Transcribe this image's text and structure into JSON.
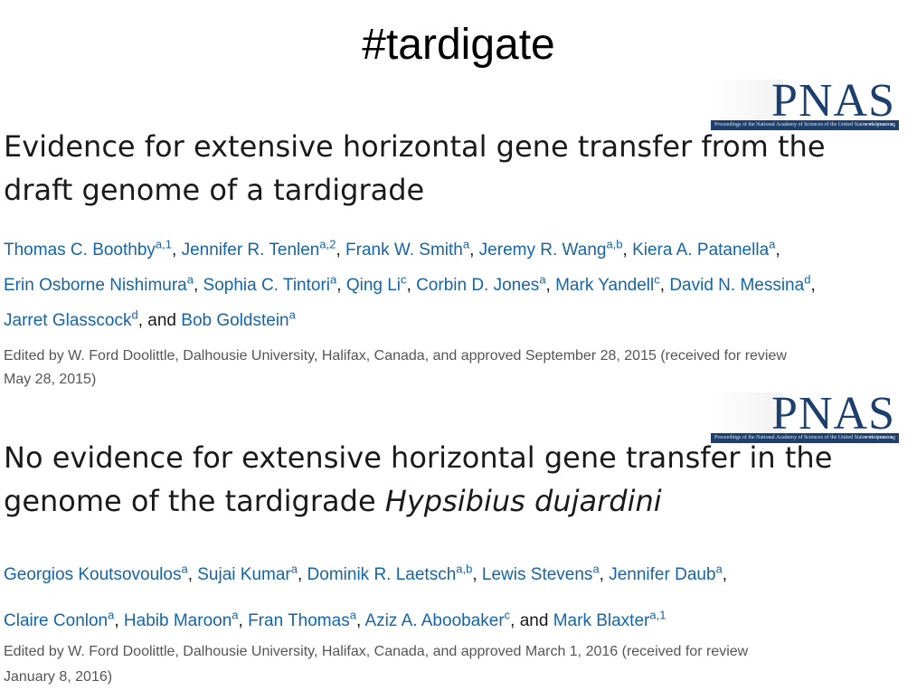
{
  "slide": {
    "title": "#tardigate"
  },
  "pnas_logo": {
    "letters": "PNAS",
    "caption": "Proceedings of the National Academy of Sciences of the United States of America",
    "url": "www.pnas.org"
  },
  "papers": [
    {
      "title_lines": [
        {
          "text": "Evidence for extensive horizontal gene transfer from the"
        },
        {
          "text": "draft genome of a tardigrade"
        }
      ],
      "author_lines": [
        [
          {
            "name": "Thomas C. Boothby",
            "aff": "a,1",
            "sep": ", "
          },
          {
            "name": "Jennifer R. Tenlen",
            "aff": "a,2",
            "sep": ", "
          },
          {
            "name": "Frank W. Smith",
            "aff": "a",
            "sep": ", "
          },
          {
            "name": "Jeremy R. Wang",
            "aff": "a,b",
            "sep": ", "
          },
          {
            "name": "Kiera A. Patanella",
            "aff": "a",
            "sep": ","
          }
        ],
        [
          {
            "name": "Erin Osborne Nishimura",
            "aff": "a",
            "sep": ", "
          },
          {
            "name": "Sophia C. Tintori",
            "aff": "a",
            "sep": ", "
          },
          {
            "name": "Qing Li",
            "aff": "c",
            "sep": ", "
          },
          {
            "name": "Corbin D. Jones",
            "aff": "a",
            "sep": ", "
          },
          {
            "name": "Mark Yandell",
            "aff": "c",
            "sep": ", "
          },
          {
            "name": "David N. Messina",
            "aff": "d",
            "sep": ","
          }
        ],
        [
          {
            "name": "Jarret Glasscock",
            "aff": "d",
            "sep": ", and "
          },
          {
            "name": "Bob Goldstein",
            "aff": "a",
            "sep": ""
          }
        ]
      ],
      "edited_lines": [
        "Edited by W. Ford Doolittle, Dalhousie University, Halifax, Canada, and approved September 28, 2015 (received for review",
        "May 28, 2015)"
      ]
    },
    {
      "title_lines": [
        {
          "text": "No evidence for extensive horizontal gene transfer in the"
        },
        {
          "text": "genome of the tardigrade ",
          "italic": "Hypsibius dujardini"
        }
      ],
      "author_lines": [
        [
          {
            "name": "Georgios Koutsovoulos",
            "aff": "a",
            "sep": ", "
          },
          {
            "name": "Sujai Kumar",
            "aff": "a",
            "sep": ", "
          },
          {
            "name": "Dominik R. Laetsch",
            "aff": "a,b",
            "sep": ", "
          },
          {
            "name": "Lewis Stevens",
            "aff": "a",
            "sep": ", "
          },
          {
            "name": "Jennifer Daub",
            "aff": "a",
            "sep": ","
          }
        ],
        [
          {
            "name": "Claire Conlon",
            "aff": "a",
            "sep": ", "
          },
          {
            "name": "Habib Maroon",
            "aff": "a",
            "sep": ", "
          },
          {
            "name": "Fran Thomas",
            "aff": "a",
            "sep": ", "
          },
          {
            "name": "Aziz A. Aboobaker",
            "aff": "c",
            "sep": ", and "
          },
          {
            "name": "Mark Blaxter",
            "aff": "a,1",
            "sep": ""
          }
        ]
      ],
      "edited_lines": [
        "Edited by W. Ford Doolittle, Dalhousie University, Halifax, Canada, and approved March 1, 2016 (received for review",
        "January 8, 2016)"
      ]
    }
  ]
}
